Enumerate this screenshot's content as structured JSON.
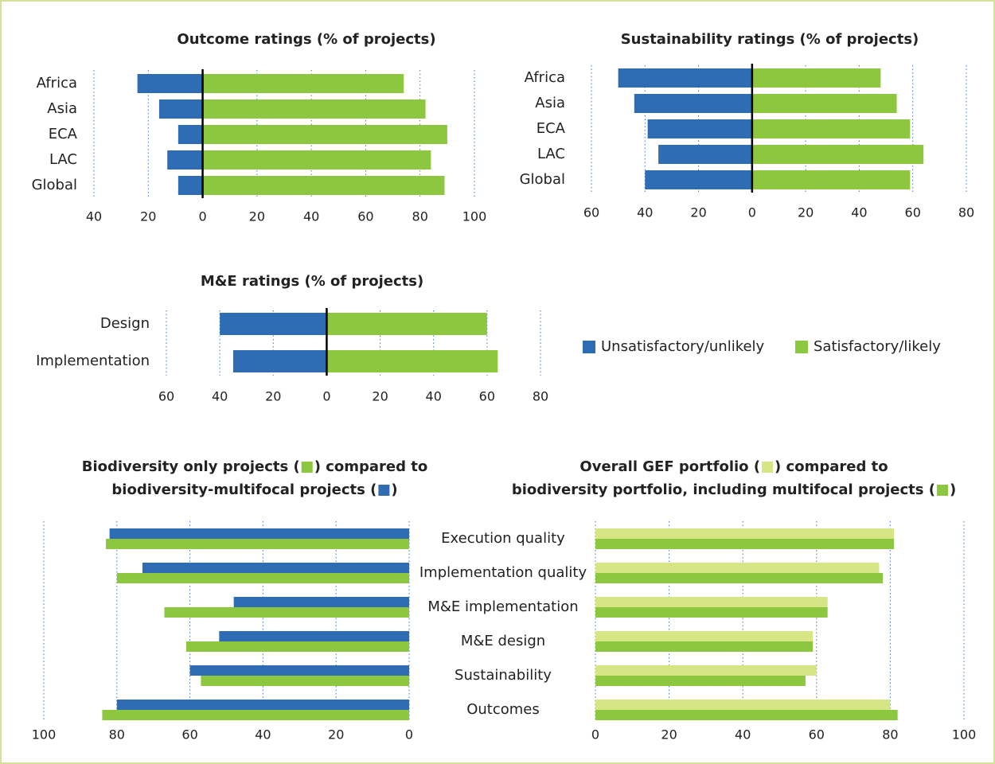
{
  "chart_data": [
    {
      "type": "bar",
      "title": "Outcome ratings (% of projects)",
      "categories": [
        "Africa",
        "Asia",
        "ECA",
        "LAC",
        "Global"
      ],
      "series": [
        {
          "color": "#2e6db4",
          "values": [
            -24,
            -16,
            -9,
            -13,
            -9
          ]
        },
        {
          "color": "#8dc63f",
          "values": [
            74,
            82,
            90,
            84,
            89
          ]
        }
      ],
      "xlim": [
        -40,
        100
      ],
      "xticks": [
        {
          "value": -40,
          "label": "40"
        },
        {
          "value": -20,
          "label": "20"
        },
        0,
        20,
        40,
        60,
        80,
        100
      ],
      "grid": true,
      "zero_line": true
    },
    {
      "type": "bar",
      "title": "Sustainability ratings (% of projects)",
      "categories": [
        "Africa",
        "Asia",
        "ECA",
        "LAC",
        "Global"
      ],
      "series": [
        {
          "color": "#2e6db4",
          "values": [
            -50,
            -44,
            -39,
            -35,
            -40
          ]
        },
        {
          "color": "#8dc63f",
          "values": [
            48,
            54,
            59,
            64,
            59
          ]
        }
      ],
      "xlim": [
        -60,
        80
      ],
      "xticks": [
        {
          "value": -60,
          "label": "60"
        },
        {
          "value": -40,
          "label": "40"
        },
        {
          "value": -20,
          "label": "20"
        },
        0,
        20,
        40,
        60,
        80
      ],
      "grid": true,
      "zero_line": true
    },
    {
      "type": "bar",
      "title": "M&E ratings (% of projects)",
      "categories": [
        "Design",
        "Implementation"
      ],
      "series": [
        {
          "name": "Unsatisfactory/unlikely",
          "color": "#2e6db4",
          "values": [
            -40,
            -35
          ]
        },
        {
          "name": "Satisfactory/likely",
          "color": "#8dc63f",
          "values": [
            60,
            64
          ]
        }
      ],
      "xlim": [
        -60,
        80
      ],
      "xticks": [
        {
          "value": -60,
          "label": "60"
        },
        {
          "value": -40,
          "label": "40"
        },
        {
          "value": -20,
          "label": "20"
        },
        0,
        20,
        40,
        60,
        80
      ],
      "grid": true,
      "zero_line": true,
      "legend": "right"
    },
    {
      "type": "bar",
      "title": [
        [
          "Biodiversity only projects (",
          ") compared to"
        ],
        [
          "biodiversity-multifocal projects (",
          ")"
        ]
      ],
      "title_square_colors": [
        "#8dc63f",
        "#2e6db4"
      ],
      "series": [
        {
          "color": "#2e6db4",
          "values": [
            82,
            73,
            48,
            52,
            60,
            80
          ]
        },
        {
          "color": "#8dc63f",
          "values": [
            83,
            80,
            67,
            61,
            57,
            84
          ]
        }
      ],
      "xlim": [
        100,
        0
      ],
      "xticks": [
        100,
        80,
        60,
        40,
        20,
        0
      ],
      "grid": true
    },
    {
      "type": "bar",
      "title": [
        [
          "Overall GEF portfolio (",
          ") compared to"
        ],
        [
          "biodiversity portfolio, including multifocal projects (",
          ")"
        ]
      ],
      "title_square_colors": [
        "#d6e685",
        "#8dc63f"
      ],
      "categories": [
        "Execution quality",
        "Implementation quality",
        "M&E implementation",
        "M&E design",
        "Sustainability",
        "Outcomes"
      ],
      "series": [
        {
          "color": "#d6e685",
          "values": [
            81,
            77,
            63,
            59,
            60,
            80
          ]
        },
        {
          "color": "#8dc63f",
          "values": [
            81,
            78,
            63,
            59,
            57,
            82
          ]
        }
      ],
      "xlim": [
        0,
        100
      ],
      "xticks": [
        0,
        20,
        40,
        60,
        80,
        100
      ],
      "grid": true
    }
  ]
}
